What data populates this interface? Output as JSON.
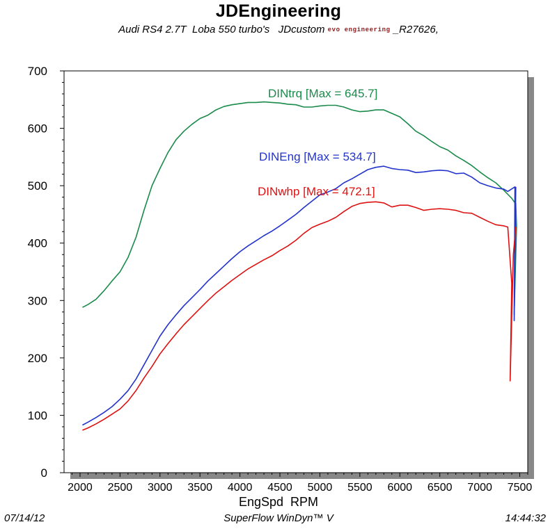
{
  "chart_data": {
    "type": "line",
    "title": "JDEngineering",
    "subtitle": {
      "text": "Audi RS4 2.7T  Loba 550 turbo's   JDcustom ",
      "logo": "evo engineering",
      "tail": " _R27626,"
    },
    "xlabel": "EngSpd  RPM",
    "ylabel": "",
    "xlim": [
      1800,
      7600
    ],
    "ylim": [
      0,
      700
    ],
    "x_ticks": [
      2000,
      2500,
      3000,
      3500,
      4000,
      4500,
      5000,
      5500,
      6000,
      6500,
      7000,
      7500
    ],
    "y_ticks": [
      0,
      100,
      200,
      300,
      400,
      500,
      600,
      700
    ],
    "x_tick_labels": [
      "2000",
      "2500",
      "3000",
      "3500",
      "4000",
      "4500",
      "5000",
      "5500",
      "6000",
      "6500",
      "7000",
      "7500"
    ],
    "y_tick_labels": [
      "0",
      "100",
      "200",
      "300",
      "400",
      "500",
      "600",
      "700"
    ],
    "grid": true,
    "series": [
      {
        "name": "DINtrq",
        "label": "DINtrq [Max = 645.7]",
        "color": "#1a8a4a",
        "points": [
          [
            2030,
            288
          ],
          [
            2100,
            293
          ],
          [
            2200,
            302
          ],
          [
            2300,
            317
          ],
          [
            2400,
            334
          ],
          [
            2500,
            350
          ],
          [
            2600,
            375
          ],
          [
            2700,
            410
          ],
          [
            2800,
            457
          ],
          [
            2900,
            500
          ],
          [
            3000,
            530
          ],
          [
            3100,
            558
          ],
          [
            3200,
            580
          ],
          [
            3300,
            595
          ],
          [
            3400,
            607
          ],
          [
            3500,
            617
          ],
          [
            3600,
            623
          ],
          [
            3700,
            632
          ],
          [
            3800,
            638
          ],
          [
            3900,
            641
          ],
          [
            4000,
            643
          ],
          [
            4100,
            645
          ],
          [
            4200,
            645
          ],
          [
            4300,
            646
          ],
          [
            4400,
            645
          ],
          [
            4500,
            644
          ],
          [
            4600,
            642
          ],
          [
            4700,
            641
          ],
          [
            4800,
            637
          ],
          [
            4900,
            637
          ],
          [
            5000,
            639
          ],
          [
            5100,
            640
          ],
          [
            5200,
            640
          ],
          [
            5300,
            637
          ],
          [
            5400,
            632
          ],
          [
            5500,
            629
          ],
          [
            5600,
            630
          ],
          [
            5700,
            632
          ],
          [
            5800,
            632
          ],
          [
            5900,
            626
          ],
          [
            6000,
            620
          ],
          [
            6100,
            608
          ],
          [
            6200,
            595
          ],
          [
            6300,
            587
          ],
          [
            6400,
            577
          ],
          [
            6500,
            568
          ],
          [
            6600,
            562
          ],
          [
            6700,
            552
          ],
          [
            6800,
            544
          ],
          [
            6900,
            535
          ],
          [
            7000,
            524
          ],
          [
            7100,
            514
          ],
          [
            7200,
            505
          ],
          [
            7300,
            492
          ],
          [
            7400,
            478
          ],
          [
            7450,
            468
          ],
          [
            7460,
            430
          ],
          [
            7430,
            275
          ],
          [
            7450,
            470
          ]
        ]
      },
      {
        "name": "DINEng",
        "label": "DINEng [Max = 534.7]",
        "color": "#2233cc",
        "points": [
          [
            2030,
            83
          ],
          [
            2100,
            88
          ],
          [
            2200,
            96
          ],
          [
            2300,
            105
          ],
          [
            2400,
            115
          ],
          [
            2500,
            128
          ],
          [
            2600,
            143
          ],
          [
            2700,
            163
          ],
          [
            2800,
            188
          ],
          [
            2900,
            213
          ],
          [
            3000,
            238
          ],
          [
            3100,
            258
          ],
          [
            3200,
            275
          ],
          [
            3300,
            291
          ],
          [
            3400,
            305
          ],
          [
            3500,
            319
          ],
          [
            3600,
            334
          ],
          [
            3700,
            347
          ],
          [
            3800,
            360
          ],
          [
            3900,
            373
          ],
          [
            4000,
            385
          ],
          [
            4100,
            395
          ],
          [
            4200,
            404
          ],
          [
            4300,
            413
          ],
          [
            4400,
            421
          ],
          [
            4500,
            430
          ],
          [
            4600,
            440
          ],
          [
            4700,
            450
          ],
          [
            4800,
            462
          ],
          [
            4900,
            473
          ],
          [
            5000,
            484
          ],
          [
            5100,
            489
          ],
          [
            5200,
            495
          ],
          [
            5300,
            505
          ],
          [
            5400,
            512
          ],
          [
            5500,
            520
          ],
          [
            5600,
            528
          ],
          [
            5700,
            532
          ],
          [
            5800,
            534
          ],
          [
            5900,
            530
          ],
          [
            6000,
            528
          ],
          [
            6100,
            527
          ],
          [
            6200,
            523
          ],
          [
            6300,
            524
          ],
          [
            6400,
            526
          ],
          [
            6500,
            527
          ],
          [
            6600,
            526
          ],
          [
            6700,
            521
          ],
          [
            6800,
            522
          ],
          [
            6900,
            515
          ],
          [
            7000,
            505
          ],
          [
            7100,
            500
          ],
          [
            7200,
            496
          ],
          [
            7300,
            494
          ],
          [
            7350,
            490
          ],
          [
            7440,
            498
          ],
          [
            7430,
            265
          ],
          [
            7450,
            498
          ]
        ]
      },
      {
        "name": "DINwhp",
        "label": "DINwhp [Max = 472.1]",
        "color": "#dd1111",
        "points": [
          [
            2030,
            74
          ],
          [
            2100,
            78
          ],
          [
            2200,
            85
          ],
          [
            2300,
            93
          ],
          [
            2400,
            102
          ],
          [
            2500,
            111
          ],
          [
            2600,
            125
          ],
          [
            2700,
            143
          ],
          [
            2800,
            165
          ],
          [
            2900,
            185
          ],
          [
            3000,
            207
          ],
          [
            3100,
            225
          ],
          [
            3200,
            242
          ],
          [
            3300,
            258
          ],
          [
            3400,
            272
          ],
          [
            3500,
            286
          ],
          [
            3600,
            300
          ],
          [
            3700,
            313
          ],
          [
            3800,
            324
          ],
          [
            3900,
            335
          ],
          [
            4000,
            345
          ],
          [
            4100,
            355
          ],
          [
            4200,
            363
          ],
          [
            4300,
            371
          ],
          [
            4400,
            378
          ],
          [
            4500,
            387
          ],
          [
            4600,
            395
          ],
          [
            4700,
            405
          ],
          [
            4800,
            417
          ],
          [
            4900,
            427
          ],
          [
            5000,
            433
          ],
          [
            5100,
            438
          ],
          [
            5200,
            445
          ],
          [
            5300,
            455
          ],
          [
            5400,
            464
          ],
          [
            5500,
            469
          ],
          [
            5600,
            471
          ],
          [
            5700,
            472
          ],
          [
            5800,
            470
          ],
          [
            5900,
            463
          ],
          [
            6000,
            466
          ],
          [
            6100,
            466
          ],
          [
            6200,
            462
          ],
          [
            6300,
            457
          ],
          [
            6400,
            459
          ],
          [
            6500,
            460
          ],
          [
            6600,
            459
          ],
          [
            6700,
            457
          ],
          [
            6800,
            453
          ],
          [
            6900,
            452
          ],
          [
            7000,
            445
          ],
          [
            7100,
            438
          ],
          [
            7200,
            432
          ],
          [
            7300,
            430
          ],
          [
            7350,
            428
          ],
          [
            7400,
            330
          ],
          [
            7380,
            160
          ],
          [
            7420,
            380
          ],
          [
            7450,
            428
          ]
        ]
      }
    ],
    "annotations": [
      {
        "text": "DINtrq [Max = 645.7]",
        "series": "DINtrq"
      },
      {
        "text": "DINEng [Max = 534.7]",
        "series": "DINEng"
      },
      {
        "text": "DINwhp [Max = 472.1]",
        "series": "DINwhp"
      }
    ]
  },
  "footer": {
    "date": "07/14/12",
    "software": "SuperFlow WinDyn™ V",
    "time": "14:44:32"
  }
}
